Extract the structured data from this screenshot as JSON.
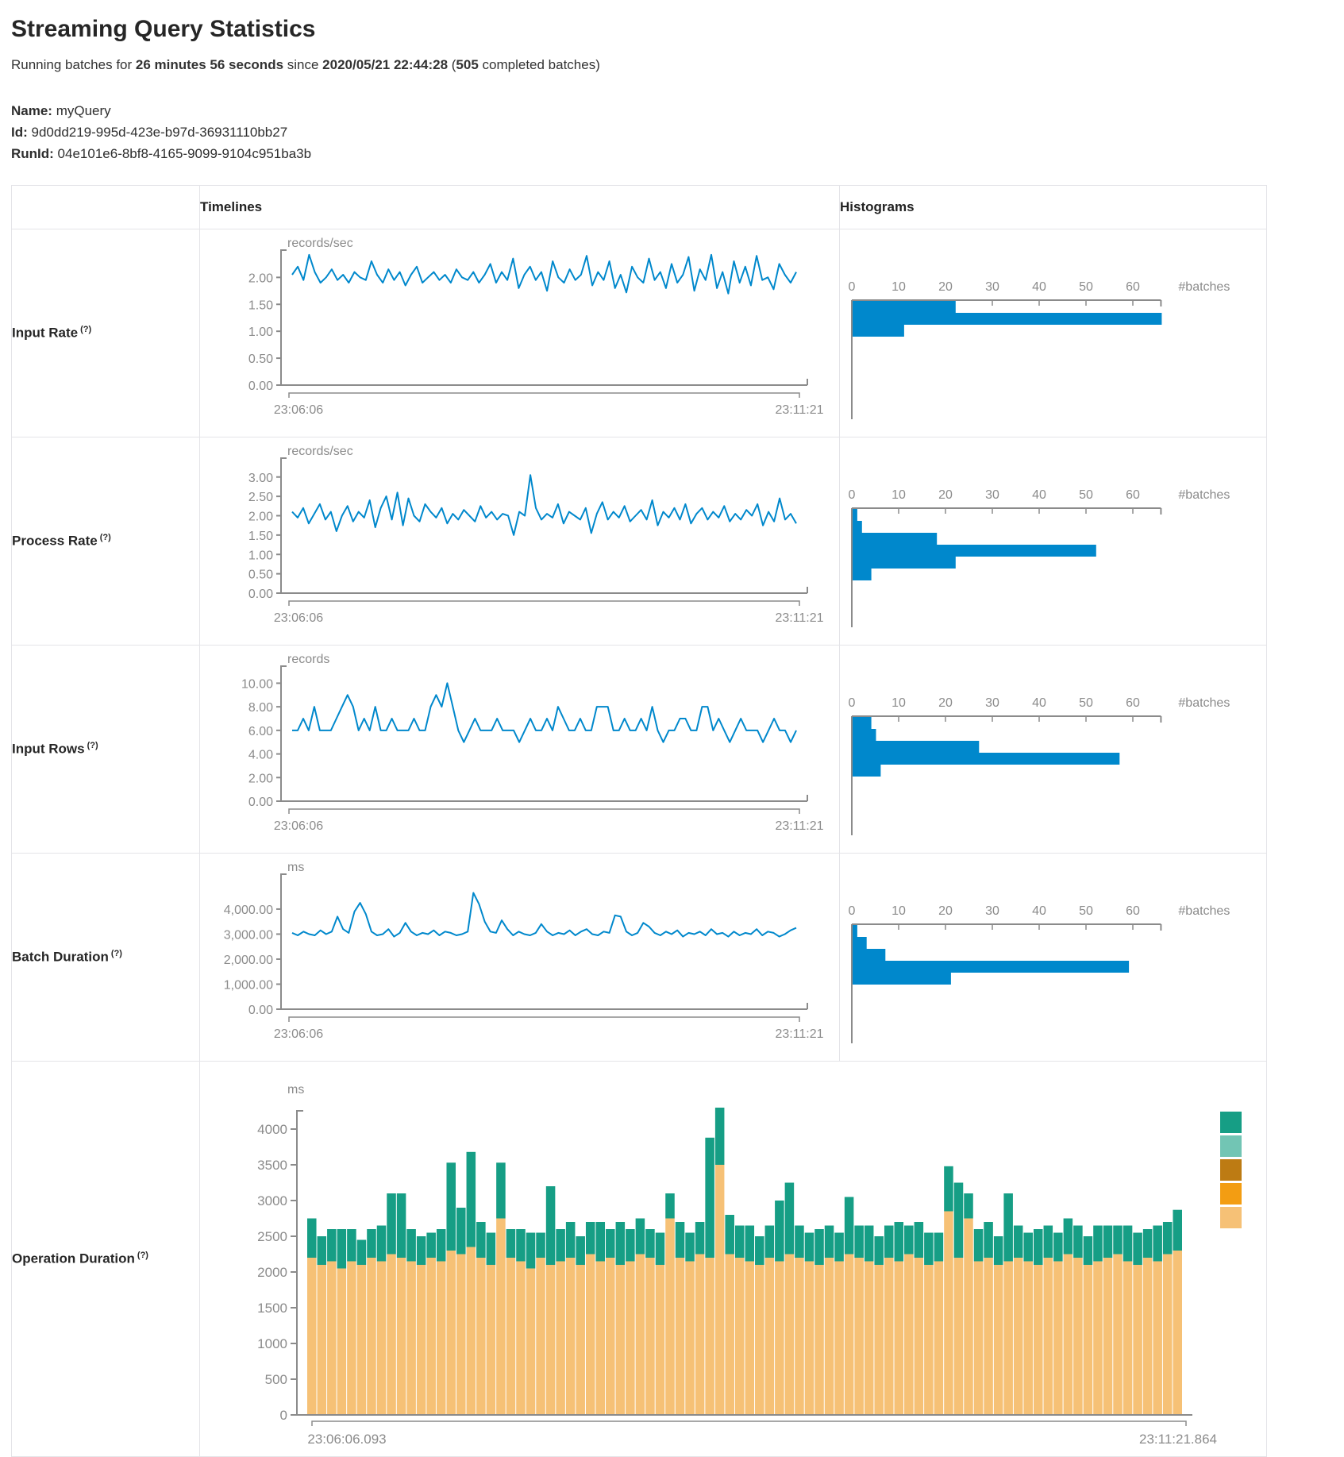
{
  "header": {
    "title": "Streaming Query Statistics",
    "subtitle": {
      "t1": "Running batches for ",
      "duration": "26 minutes 56 seconds",
      "t2": " since ",
      "start_time": "2020/05/21 22:44:28",
      "t3": " (",
      "batch_count": "505",
      "t4": " completed batches)"
    },
    "meta": {
      "name_label": "Name:",
      "name_value": " myQuery",
      "id_label": "Id:",
      "id_value": " 9d0dd219-995d-423e-b97d-36931110bb27",
      "runid_label": "RunId:",
      "runid_value": " 04e101e6-8bf8-4165-9099-9104c951ba3b"
    }
  },
  "table": {
    "columns": {
      "timelines": "Timelines",
      "histograms": "Histograms"
    },
    "rows": [
      {
        "label": "Input Rate",
        "help": "(?)"
      },
      {
        "label": "Process Rate",
        "help": "(?)"
      },
      {
        "label": "Input Rows",
        "help": "(?)"
      },
      {
        "label": "Batch Duration",
        "help": "(?)"
      },
      {
        "label": "Operation Duration",
        "help": "(?)"
      }
    ]
  },
  "colors": {
    "line_blue": "#0088cc",
    "bar_blue": "#0088cc",
    "axis_gray": "#8b8b8b",
    "legend_teal": "#169e85",
    "legend_light_teal": "#72c5b4",
    "legend_dark_orange": "#bd7b13",
    "legend_orange": "#f39d12",
    "legend_light_orange": "#f6c176"
  },
  "chart_data": [
    {
      "id": "input-rate-timeline",
      "type": "line",
      "unit": "records/sec",
      "x_start_label": "23:06:06",
      "x_end_label": "23:11:21",
      "ylim": [
        0,
        2.3
      ],
      "y_ticks": [
        {
          "v": 0,
          "t": "0.00"
        },
        {
          "v": 0.5,
          "t": "0.50"
        },
        {
          "v": 1,
          "t": "1.00"
        },
        {
          "v": 1.5,
          "t": "1.50"
        },
        {
          "v": 2,
          "t": "2.00"
        }
      ],
      "values": [
        2.05,
        2.2,
        1.95,
        2.42,
        2.1,
        1.9,
        2.0,
        2.15,
        1.95,
        2.05,
        1.9,
        2.1,
        2.0,
        1.95,
        2.3,
        2.05,
        1.9,
        2.15,
        1.95,
        2.1,
        1.85,
        2.05,
        2.2,
        1.9,
        2.0,
        2.1,
        1.95,
        2.05,
        1.9,
        2.15,
        2.0,
        1.95,
        2.1,
        1.9,
        2.05,
        2.25,
        1.9,
        2.1,
        1.95,
        2.35,
        1.8,
        2.05,
        2.2,
        1.95,
        2.1,
        1.75,
        2.3,
        2.0,
        1.9,
        2.15,
        1.95,
        2.05,
        2.4,
        1.85,
        2.1,
        1.95,
        2.3,
        1.8,
        2.05,
        1.72,
        2.2,
        2.0,
        1.9,
        2.35,
        1.95,
        2.1,
        1.8,
        2.25,
        1.9,
        2.05,
        2.38,
        1.75,
        2.15,
        1.95,
        2.42,
        1.8,
        2.1,
        1.7,
        2.3,
        1.9,
        2.2,
        1.85,
        2.4,
        1.95,
        2.0,
        1.78,
        2.25,
        2.05,
        1.9,
        2.1
      ]
    },
    {
      "id": "input-rate-histogram",
      "type": "histogram-h",
      "axis_end_label": "#batches",
      "x_ticks": [
        0,
        10,
        20,
        30,
        40,
        50,
        60
      ],
      "xlim": [
        0,
        66
      ],
      "values": [
        22,
        66,
        11
      ]
    },
    {
      "id": "process-rate-timeline",
      "type": "line",
      "unit": "records/sec",
      "x_start_label": "23:06:06",
      "x_end_label": "23:11:21",
      "ylim": [
        0,
        3.2
      ],
      "y_ticks": [
        {
          "v": 0,
          "t": "0.00"
        },
        {
          "v": 0.5,
          "t": "0.50"
        },
        {
          "v": 1,
          "t": "1.00"
        },
        {
          "v": 1.5,
          "t": "1.50"
        },
        {
          "v": 2,
          "t": "2.00"
        },
        {
          "v": 2.5,
          "t": "2.50"
        },
        {
          "v": 3,
          "t": "3.00"
        }
      ],
      "values": [
        2.1,
        1.95,
        2.2,
        1.8,
        2.05,
        2.3,
        1.9,
        2.1,
        1.6,
        2.0,
        2.25,
        1.85,
        2.1,
        1.95,
        2.4,
        1.7,
        2.2,
        2.5,
        1.9,
        2.6,
        1.75,
        2.45,
        2.0,
        1.85,
        2.3,
        2.1,
        1.95,
        2.2,
        1.8,
        2.05,
        1.9,
        2.15,
        2.0,
        1.85,
        2.25,
        1.95,
        2.1,
        1.9,
        2.05,
        2.0,
        1.5,
        2.1,
        2.0,
        3.05,
        2.2,
        1.9,
        2.05,
        1.95,
        2.3,
        1.8,
        2.1,
        2.0,
        1.9,
        2.2,
        1.55,
        2.05,
        2.35,
        1.9,
        2.1,
        1.95,
        2.25,
        1.85,
        2.0,
        2.15,
        1.9,
        2.4,
        1.75,
        2.1,
        1.95,
        2.2,
        1.9,
        2.3,
        1.8,
        2.05,
        2.2,
        1.9,
        2.1,
        1.95,
        2.25,
        1.85,
        2.05,
        1.9,
        2.15,
        2.0,
        2.3,
        1.75,
        2.1,
        1.85,
        2.45,
        1.9,
        2.05,
        1.8
      ]
    },
    {
      "id": "process-rate-histogram",
      "type": "histogram-h",
      "axis_end_label": "#batches",
      "x_ticks": [
        0,
        10,
        20,
        30,
        40,
        50,
        60
      ],
      "xlim": [
        0,
        66
      ],
      "values": [
        1,
        2,
        18,
        52,
        22,
        4
      ]
    },
    {
      "id": "input-rows-timeline",
      "type": "line",
      "unit": "records",
      "x_start_label": "23:06:06",
      "x_end_label": "23:11:21",
      "ylim": [
        0,
        10.5
      ],
      "y_ticks": [
        {
          "v": 0,
          "t": "0.00"
        },
        {
          "v": 2,
          "t": "2.00"
        },
        {
          "v": 4,
          "t": "4.00"
        },
        {
          "v": 6,
          "t": "6.00"
        },
        {
          "v": 8,
          "t": "8.00"
        },
        {
          "v": 10,
          "t": "10.00"
        }
      ],
      "values": [
        6,
        6,
        7,
        6,
        8,
        6,
        6,
        6,
        7,
        8,
        9,
        8,
        6,
        7,
        6,
        8,
        6,
        6,
        7,
        6,
        6,
        6,
        7,
        6,
        6,
        8,
        9,
        8,
        10,
        8,
        6,
        5,
        6,
        7,
        6,
        6,
        6,
        7,
        6,
        6,
        6,
        5,
        6,
        7,
        6,
        6,
        7,
        6,
        8,
        7,
        6,
        6,
        7,
        6,
        6,
        8,
        8,
        8,
        6,
        6,
        7,
        6,
        6,
        7,
        6,
        8,
        6,
        5,
        6,
        6,
        7,
        7,
        6,
        6,
        8,
        8,
        6,
        7,
        6,
        5,
        6,
        7,
        6,
        6,
        6,
        5,
        6,
        7,
        6,
        6,
        5,
        6
      ]
    },
    {
      "id": "input-rows-histogram",
      "type": "histogram-h",
      "axis_end_label": "#batches",
      "x_ticks": [
        0,
        10,
        20,
        30,
        40,
        50,
        60
      ],
      "xlim": [
        0,
        66
      ],
      "values": [
        4,
        5,
        27,
        57,
        6
      ]
    },
    {
      "id": "batch-duration-timeline",
      "type": "line",
      "unit": "ms",
      "x_start_label": "23:06:06",
      "x_end_label": "23:11:21",
      "ylim": [
        0,
        4950
      ],
      "y_ticks": [
        {
          "v": 0,
          "t": "0.00"
        },
        {
          "v": 1000,
          "t": "1,000.00"
        },
        {
          "v": 2000,
          "t": "2,000.00"
        },
        {
          "v": 3000,
          "t": "3,000.00"
        },
        {
          "v": 4000,
          "t": "4,000.00"
        }
      ],
      "values": [
        3050,
        2950,
        3100,
        3000,
        2950,
        3150,
        3000,
        3100,
        3700,
        3200,
        3050,
        3900,
        4250,
        3800,
        3100,
        2950,
        3000,
        3200,
        2900,
        3050,
        3450,
        3100,
        2950,
        3050,
        3000,
        3150,
        2950,
        3100,
        3050,
        2950,
        3000,
        3100,
        4650,
        4200,
        3500,
        3100,
        3050,
        3550,
        3200,
        2950,
        3100,
        3000,
        2950,
        3050,
        3400,
        3100,
        2950,
        3050,
        3000,
        3150,
        2950,
        3100,
        3200,
        3000,
        2950,
        3100,
        3050,
        3750,
        3700,
        3100,
        2950,
        3050,
        3450,
        3300,
        3050,
        2950,
        3100,
        3000,
        3150,
        2900,
        3050,
        3000,
        3100,
        2950,
        3200,
        3000,
        3050,
        2900,
        3100,
        2950,
        3050,
        3000,
        3200,
        2950,
        3100,
        3050,
        2900,
        3000,
        3150,
        3250
      ]
    },
    {
      "id": "batch-duration-histogram",
      "type": "histogram-h",
      "axis_end_label": "#batches",
      "x_ticks": [
        0,
        10,
        20,
        30,
        40,
        50,
        60
      ],
      "xlim": [
        0,
        66
      ],
      "values": [
        1,
        3,
        7,
        59,
        21
      ]
    },
    {
      "id": "operation-duration",
      "type": "stacked-bar",
      "unit": "ms",
      "x_start_label": "23:06:06.093",
      "x_end_label": "23:11:21.864",
      "ylim": [
        0,
        4160
      ],
      "y_ticks": [
        {
          "v": 0,
          "t": "0"
        },
        {
          "v": 500,
          "t": "500"
        },
        {
          "v": 1000,
          "t": "1000"
        },
        {
          "v": 1500,
          "t": "1500"
        },
        {
          "v": 2000,
          "t": "2000"
        },
        {
          "v": 2500,
          "t": "2500"
        },
        {
          "v": 3000,
          "t": "3000"
        },
        {
          "v": 3500,
          "t": "3500"
        },
        {
          "v": 4000,
          "t": "4000"
        }
      ],
      "series_colors": [
        "#f6c176",
        "#169e85"
      ],
      "legend_colors": [
        "#169e85",
        "#72c5b4",
        "#bd7b13",
        "#f39d12",
        "#f6c176"
      ],
      "bars": [
        [
          2200,
          550
        ],
        [
          2100,
          400
        ],
        [
          2150,
          450
        ],
        [
          2050,
          550
        ],
        [
          2150,
          450
        ],
        [
          2100,
          350
        ],
        [
          2200,
          400
        ],
        [
          2150,
          500
        ],
        [
          2250,
          850
        ],
        [
          2200,
          900
        ],
        [
          2150,
          450
        ],
        [
          2100,
          400
        ],
        [
          2200,
          350
        ],
        [
          2150,
          450
        ],
        [
          2300,
          1230
        ],
        [
          2250,
          650
        ],
        [
          2350,
          1330
        ],
        [
          2200,
          500
        ],
        [
          2100,
          450
        ],
        [
          2750,
          780
        ],
        [
          2200,
          400
        ],
        [
          2150,
          450
        ],
        [
          2050,
          500
        ],
        [
          2200,
          350
        ],
        [
          2100,
          1100
        ],
        [
          2150,
          450
        ],
        [
          2200,
          500
        ],
        [
          2100,
          400
        ],
        [
          2250,
          450
        ],
        [
          2150,
          550
        ],
        [
          2200,
          400
        ],
        [
          2100,
          600
        ],
        [
          2150,
          450
        ],
        [
          2250,
          500
        ],
        [
          2200,
          400
        ],
        [
          2100,
          450
        ],
        [
          2750,
          350
        ],
        [
          2200,
          500
        ],
        [
          2150,
          400
        ],
        [
          2250,
          450
        ],
        [
          2200,
          1680
        ],
        [
          3500,
          800
        ],
        [
          2250,
          550
        ],
        [
          2200,
          450
        ],
        [
          2150,
          500
        ],
        [
          2100,
          400
        ],
        [
          2200,
          450
        ],
        [
          2150,
          850
        ],
        [
          2250,
          1000
        ],
        [
          2200,
          450
        ],
        [
          2150,
          400
        ],
        [
          2100,
          500
        ],
        [
          2200,
          450
        ],
        [
          2150,
          400
        ],
        [
          2250,
          800
        ],
        [
          2200,
          450
        ],
        [
          2150,
          500
        ],
        [
          2100,
          400
        ],
        [
          2200,
          450
        ],
        [
          2150,
          550
        ],
        [
          2250,
          400
        ],
        [
          2200,
          500
        ],
        [
          2100,
          450
        ],
        [
          2150,
          400
        ],
        [
          2850,
          630
        ],
        [
          2200,
          1050
        ],
        [
          2750,
          350
        ],
        [
          2150,
          450
        ],
        [
          2200,
          500
        ],
        [
          2100,
          400
        ],
        [
          2150,
          950
        ],
        [
          2200,
          450
        ],
        [
          2150,
          400
        ],
        [
          2100,
          500
        ],
        [
          2200,
          450
        ],
        [
          2150,
          400
        ],
        [
          2250,
          500
        ],
        [
          2200,
          450
        ],
        [
          2100,
          400
        ],
        [
          2150,
          500
        ],
        [
          2200,
          450
        ],
        [
          2250,
          400
        ],
        [
          2150,
          500
        ],
        [
          2100,
          450
        ],
        [
          2200,
          400
        ],
        [
          2150,
          500
        ],
        [
          2250,
          450
        ],
        [
          2300,
          570
        ]
      ]
    }
  ]
}
